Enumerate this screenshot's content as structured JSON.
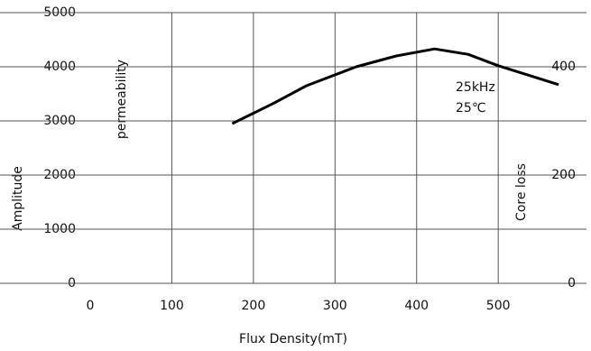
{
  "chart_data": {
    "type": "line",
    "x_label": "Flux Density(mT)",
    "y_label": "Amplitude",
    "y_label_secondary": "permeability",
    "y2_label": "Core loss",
    "annotations": [
      "25kHz",
      "25℃"
    ],
    "x": [
      174,
      224,
      265,
      326,
      375,
      422,
      463,
      500,
      574
    ],
    "series": [
      {
        "name": "permeability",
        "color": "#000000",
        "values": [
          2950,
          3320,
          3650,
          4000,
          4200,
          4330,
          4230,
          4020,
          3670
        ]
      }
    ],
    "xlim": [
      0,
      575
    ],
    "xticks": [
      0,
      100,
      200,
      300,
      400,
      500
    ],
    "ylim": [
      0,
      5000
    ],
    "yticks": [
      0,
      1000,
      2000,
      3000,
      4000,
      5000
    ],
    "y2lim": [
      0,
      500
    ],
    "y2ticks": [
      0,
      200,
      400
    ],
    "grid": true
  }
}
